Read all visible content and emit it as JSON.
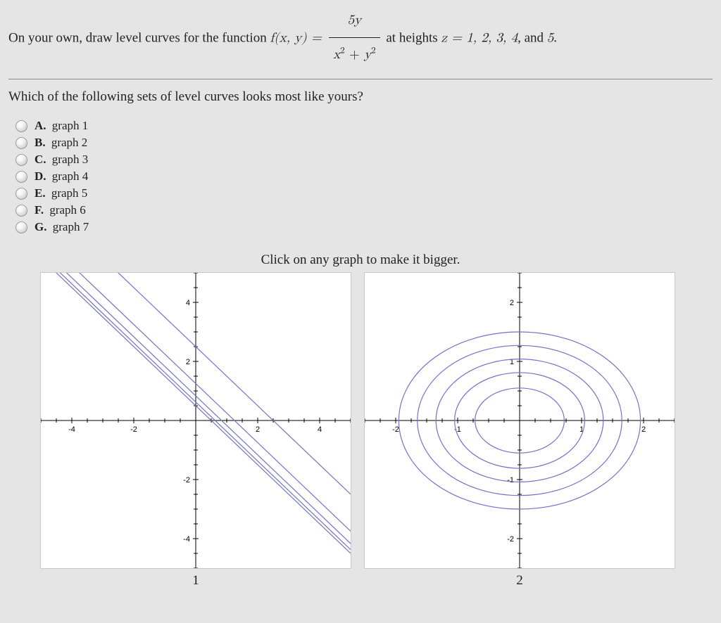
{
  "prompt": {
    "lead": "On your own, draw level curves for the function ",
    "func_lhs": "f(x, y) = ",
    "frac_num": "5y",
    "frac_den_a": "x",
    "frac_den_plus": " + ",
    "frac_den_b": "y",
    "mid": " at heights ",
    "z_eq": "z = 1, 2, 3, 4",
    "tail": ", and ",
    "last": "5",
    "period": "."
  },
  "question": "Which of the following sets of level curves looks most like yours?",
  "options": [
    {
      "letter": "A.",
      "text": "graph 1"
    },
    {
      "letter": "B.",
      "text": "graph 2"
    },
    {
      "letter": "C.",
      "text": "graph 3"
    },
    {
      "letter": "D.",
      "text": "graph 4"
    },
    {
      "letter": "E.",
      "text": "graph 5"
    },
    {
      "letter": "F.",
      "text": "graph 6"
    },
    {
      "letter": "G.",
      "text": "graph 7"
    }
  ],
  "graph_instruction": "Click on any graph to make it bigger.",
  "graphs": {
    "1": {
      "label": "1",
      "type": "line",
      "background_color": "#ffffff",
      "axis_color": "#000000",
      "curve_color": "#7272c8",
      "xlim": [
        -5,
        5
      ],
      "ylim": [
        -5,
        5
      ],
      "xticks": [
        -4,
        -2,
        2,
        4
      ],
      "yticks": [
        -4,
        -2,
        2,
        4
      ],
      "xtick_labels": [
        "-4",
        "-2",
        "2",
        "4"
      ],
      "ytick_labels": [
        "-4",
        "-2",
        "2",
        "4"
      ],
      "lines_intercepts": [
        2.5,
        1.25,
        0.833,
        0.625,
        0.5
      ],
      "line_width": 1.2
    },
    "2": {
      "label": "2",
      "type": "ellipses",
      "background_color": "#ffffff",
      "axis_color": "#000000",
      "curve_color": "#7272c8",
      "xlim": [
        -2.5,
        2.5
      ],
      "ylim": [
        -2.5,
        2.5
      ],
      "xticks": [
        -2,
        -1,
        1,
        2
      ],
      "yticks": [
        -2,
        -1,
        1,
        2
      ],
      "xtick_labels": [
        "-2",
        "-1",
        "1",
        "2"
      ],
      "ytick_labels": [
        "-2",
        "-1",
        "1",
        "2"
      ],
      "ellipse_rx": [
        1.95,
        1.65,
        1.35,
        1.05,
        0.72
      ],
      "ellipse_ry": [
        1.5,
        1.27,
        1.04,
        0.81,
        0.55
      ],
      "line_width": 1.2
    }
  }
}
